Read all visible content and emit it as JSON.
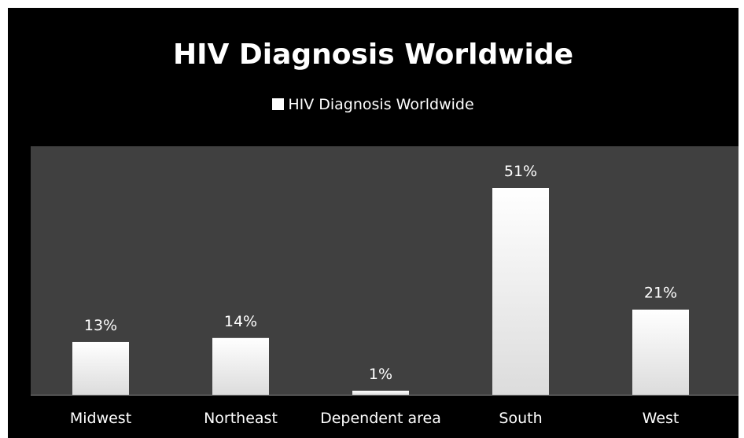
{
  "colors": {
    "background": "#000000",
    "plot_background": "#404040",
    "bar_top": "#ffffff",
    "bar_bottom": "#dcdcdc",
    "text": "#ffffff"
  },
  "chart_data": {
    "type": "bar",
    "title": "HIV Diagnosis Worldwide",
    "categories": [
      "Midwest",
      "Northeast",
      "Dependent area",
      "South",
      "West"
    ],
    "series": [
      {
        "name": "HIV Diagnosis Worldwide",
        "values": [
          13,
          14,
          1,
          51,
          21
        ],
        "labels": [
          "13%",
          "14%",
          "1%",
          "51%",
          "21%"
        ]
      }
    ],
    "xlabel": "",
    "ylabel": "",
    "ylim": [
      0,
      55
    ],
    "legend_position": "top",
    "grid": false
  }
}
